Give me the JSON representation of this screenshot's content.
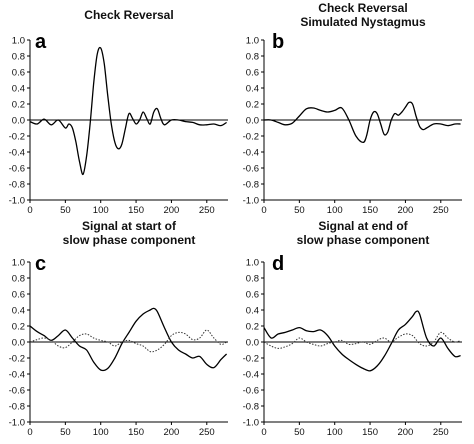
{
  "chart_data": [
    {
      "type": "line",
      "panel": "a",
      "title": [
        "Check Reversal"
      ],
      "xlim": [
        0,
        280
      ],
      "ylim": [
        -1.0,
        1.0
      ],
      "xticks": [
        0,
        50,
        100,
        150,
        200,
        250
      ],
      "yticks": [
        -1.0,
        -0.8,
        -0.6,
        -0.4,
        -0.2,
        0.0,
        0.2,
        0.4,
        0.6,
        0.8,
        1.0
      ],
      "series": [
        {
          "style": "solid",
          "x": [
            0,
            10,
            20,
            30,
            40,
            50,
            55,
            60,
            65,
            70,
            75,
            80,
            85,
            90,
            95,
            100,
            105,
            110,
            115,
            120,
            125,
            130,
            135,
            140,
            145,
            150,
            155,
            160,
            165,
            170,
            175,
            180,
            185,
            190,
            200,
            210,
            220,
            230,
            240,
            250,
            260,
            270,
            278
          ],
          "y": [
            -0.02,
            -0.05,
            0.01,
            -0.06,
            0.0,
            -0.1,
            -0.05,
            -0.1,
            -0.28,
            -0.52,
            -0.68,
            -0.45,
            -0.05,
            0.45,
            0.82,
            0.9,
            0.7,
            0.3,
            -0.05,
            -0.28,
            -0.36,
            -0.3,
            -0.1,
            0.08,
            0.02,
            -0.05,
            0.0,
            0.1,
            0.02,
            -0.05,
            0.1,
            0.14,
            0.02,
            -0.06,
            0.0,
            0.0,
            -0.02,
            -0.03,
            -0.06,
            -0.06,
            -0.05,
            -0.07,
            -0.03
          ]
        }
      ]
    },
    {
      "type": "line",
      "panel": "b",
      "title": [
        "Check Reversal",
        "Simulated Nystagmus"
      ],
      "xlim": [
        0,
        280
      ],
      "ylim": [
        -1.0,
        1.0
      ],
      "xticks": [
        0,
        50,
        100,
        150,
        200,
        250
      ],
      "yticks": [
        -1.0,
        -0.8,
        -0.6,
        -0.4,
        -0.2,
        0.0,
        0.2,
        0.4,
        0.6,
        0.8,
        1.0
      ],
      "series": [
        {
          "style": "solid",
          "x": [
            0,
            10,
            20,
            30,
            40,
            50,
            60,
            70,
            80,
            90,
            100,
            110,
            120,
            130,
            140,
            145,
            150,
            155,
            160,
            165,
            170,
            175,
            180,
            185,
            190,
            195,
            200,
            205,
            210,
            215,
            220,
            225,
            230,
            240,
            250,
            260,
            270,
            278
          ],
          "y": [
            0.0,
            0.0,
            -0.03,
            -0.06,
            -0.04,
            0.05,
            0.14,
            0.15,
            0.12,
            0.1,
            0.12,
            0.15,
            0.0,
            -0.2,
            -0.28,
            -0.2,
            0.0,
            0.1,
            0.08,
            -0.05,
            -0.18,
            -0.15,
            0.0,
            0.08,
            0.06,
            0.1,
            0.16,
            0.22,
            0.2,
            0.05,
            -0.08,
            -0.12,
            -0.1,
            -0.05,
            -0.05,
            -0.07,
            -0.05,
            -0.05
          ]
        }
      ]
    },
    {
      "type": "line",
      "panel": "c",
      "title": [
        "Signal at start of",
        "slow phase component"
      ],
      "xlim": [
        0,
        280
      ],
      "ylim": [
        -1.0,
        1.0
      ],
      "xticks": [
        0,
        50,
        100,
        150,
        200,
        250
      ],
      "yticks": [
        -1.0,
        -0.8,
        -0.6,
        -0.4,
        -0.2,
        0.0,
        0.2,
        0.4,
        0.6,
        0.8,
        1.0
      ],
      "series": [
        {
          "style": "solid",
          "x": [
            0,
            10,
            20,
            30,
            40,
            50,
            60,
            70,
            80,
            90,
            100,
            110,
            120,
            130,
            140,
            150,
            160,
            170,
            175,
            180,
            190,
            200,
            210,
            220,
            230,
            240,
            250,
            260,
            270,
            278
          ],
          "y": [
            0.2,
            0.13,
            0.08,
            0.02,
            0.08,
            0.15,
            0.05,
            -0.05,
            -0.1,
            -0.25,
            -0.35,
            -0.33,
            -0.2,
            -0.02,
            0.12,
            0.26,
            0.35,
            0.4,
            0.42,
            0.38,
            0.18,
            0.0,
            -0.1,
            -0.15,
            -0.2,
            -0.18,
            -0.28,
            -0.32,
            -0.22,
            -0.15
          ]
        },
        {
          "style": "dotted",
          "x": [
            0,
            10,
            20,
            30,
            40,
            50,
            60,
            70,
            80,
            90,
            100,
            110,
            120,
            130,
            140,
            150,
            160,
            170,
            180,
            190,
            200,
            210,
            220,
            230,
            240,
            250,
            260,
            270,
            278
          ],
          "y": [
            0.0,
            0.03,
            0.05,
            0.02,
            -0.05,
            -0.07,
            0.0,
            0.08,
            0.1,
            0.05,
            0.02,
            0.0,
            -0.05,
            0.0,
            0.02,
            -0.02,
            -0.05,
            -0.12,
            -0.1,
            -0.03,
            0.08,
            0.12,
            0.1,
            0.03,
            0.05,
            0.15,
            0.05,
            -0.03,
            0.0
          ]
        }
      ]
    },
    {
      "type": "line",
      "panel": "d",
      "title": [
        "Signal at end of",
        "slow phase component"
      ],
      "xlim": [
        0,
        280
      ],
      "ylim": [
        -1.0,
        1.0
      ],
      "xticks": [
        0,
        50,
        100,
        150,
        200,
        250
      ],
      "yticks": [
        -1.0,
        -0.8,
        -0.6,
        -0.4,
        -0.2,
        0.0,
        0.2,
        0.4,
        0.6,
        0.8,
        1.0
      ],
      "series": [
        {
          "style": "solid",
          "x": [
            0,
            10,
            20,
            30,
            40,
            50,
            60,
            70,
            80,
            90,
            100,
            110,
            120,
            130,
            140,
            150,
            160,
            170,
            180,
            190,
            200,
            210,
            215,
            220,
            230,
            240,
            250,
            260,
            270,
            278
          ],
          "y": [
            0.18,
            0.05,
            0.1,
            0.12,
            0.15,
            0.18,
            0.14,
            0.13,
            0.15,
            0.08,
            -0.05,
            -0.15,
            -0.22,
            -0.28,
            -0.33,
            -0.36,
            -0.3,
            -0.18,
            -0.02,
            0.15,
            0.22,
            0.32,
            0.38,
            0.35,
            0.05,
            -0.05,
            0.05,
            -0.08,
            -0.18,
            -0.17
          ]
        },
        {
          "style": "dotted",
          "x": [
            0,
            10,
            20,
            30,
            40,
            50,
            60,
            70,
            80,
            90,
            100,
            110,
            120,
            130,
            140,
            150,
            160,
            170,
            180,
            190,
            200,
            210,
            220,
            230,
            240,
            250,
            260,
            270,
            278
          ],
          "y": [
            0.0,
            -0.05,
            -0.08,
            -0.06,
            -0.02,
            0.05,
            0.0,
            -0.03,
            -0.05,
            -0.02,
            0.0,
            0.02,
            -0.03,
            -0.02,
            0.0,
            -0.03,
            0.02,
            0.05,
            0.0,
            0.06,
            0.1,
            0.08,
            -0.02,
            -0.05,
            0.0,
            0.12,
            0.05,
            0.0,
            0.02
          ]
        }
      ]
    }
  ]
}
